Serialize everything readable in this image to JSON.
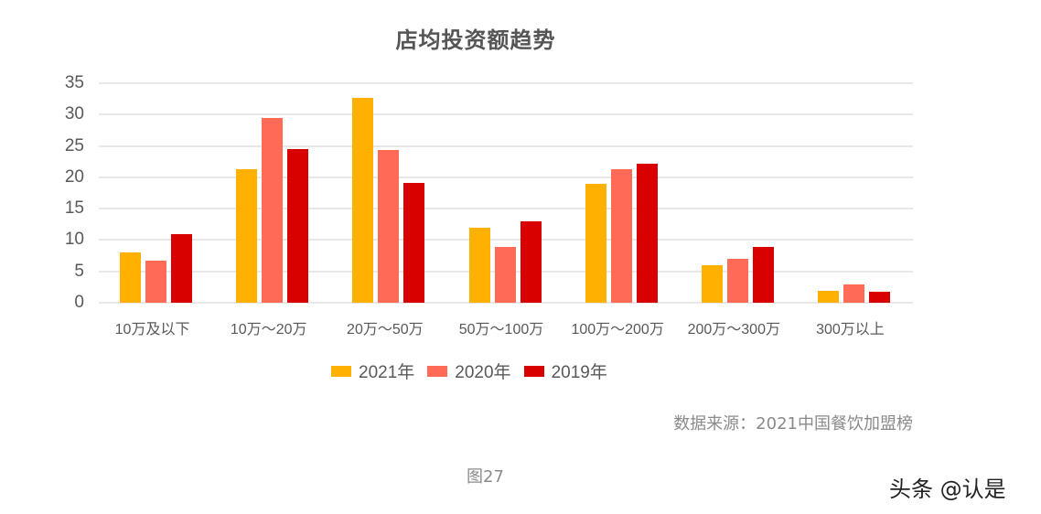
{
  "chart_data": {
    "type": "bar",
    "title": "店均投资额趋势",
    "xlabel": "",
    "ylabel": "",
    "ylim": [
      0,
      35
    ],
    "yticks": [
      0,
      5,
      10,
      15,
      20,
      25,
      30,
      35
    ],
    "grid": true,
    "legend_position": "bottom",
    "categories": [
      "10万及以下",
      "10万～20万",
      "20万～50万",
      "50万～100万",
      "100万～200万",
      "200万～300万",
      "300万以上"
    ],
    "series": [
      {
        "name": "2021年",
        "color": "#FFB000",
        "values": [
          8.0,
          21.3,
          32.6,
          12.0,
          19.0,
          6.0,
          1.9
        ]
      },
      {
        "name": "2020年",
        "color": "#FF6B57",
        "values": [
          6.7,
          29.4,
          24.3,
          8.9,
          21.3,
          7.0,
          2.9
        ]
      },
      {
        "name": "2019年",
        "color": "#D90000",
        "values": [
          11.0,
          24.5,
          19.1,
          13.0,
          22.2,
          8.9,
          1.7
        ]
      }
    ]
  },
  "source_note": "数据来源：2021中国餐饮加盟榜",
  "figure_label": "图27",
  "watermark": "头条 @认是"
}
